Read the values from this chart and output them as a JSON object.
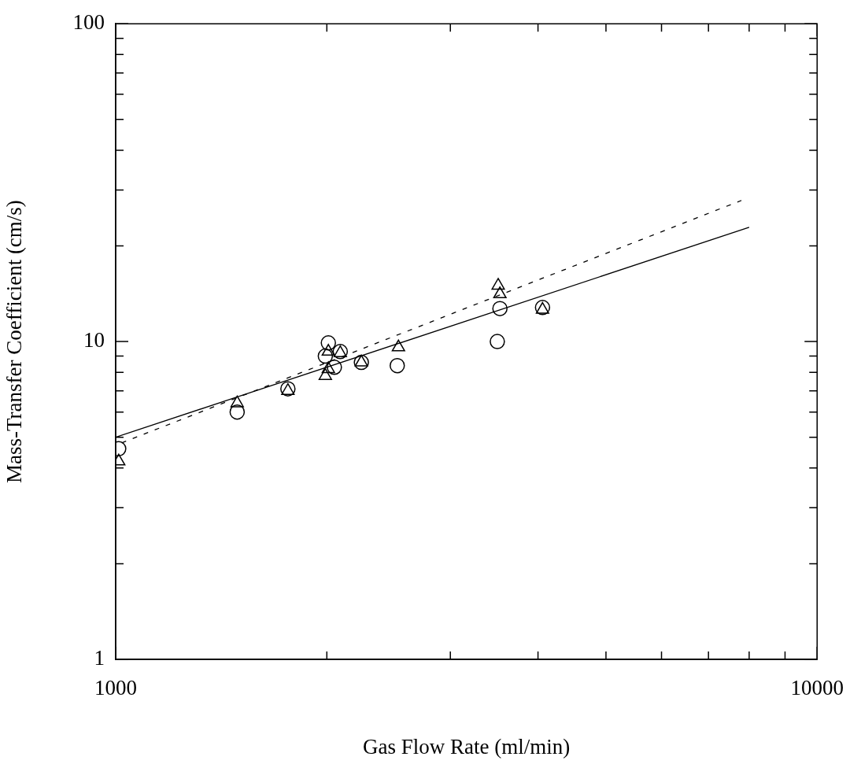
{
  "chart_data": {
    "type": "scatter",
    "xlabel": "Gas Flow Rate (ml/min)",
    "ylabel": "Mass-Transfer Coefficient (cm/s)",
    "log": "xy",
    "grid": false,
    "legend": false,
    "xlim": [
      1000,
      10000
    ],
    "ylim": [
      1,
      100
    ],
    "xticks": [
      1000,
      {
        "value": 2000,
        "label": null
      },
      {
        "value": 3000,
        "label": null
      },
      {
        "value": 4000,
        "label": null
      },
      {
        "value": 5000,
        "label": null
      },
      {
        "value": 6000,
        "label": null
      },
      {
        "value": 7000,
        "label": null
      },
      {
        "value": 8000,
        "label": null
      },
      {
        "value": 9000,
        "label": null
      },
      10000
    ],
    "yticks": [
      1,
      {
        "value": 2,
        "label": null
      },
      {
        "value": 3,
        "label": null
      },
      {
        "value": 4,
        "label": null
      },
      {
        "value": 5,
        "label": null
      },
      {
        "value": 6,
        "label": null
      },
      {
        "value": 7,
        "label": null
      },
      {
        "value": 8,
        "label": null
      },
      {
        "value": 9,
        "label": null
      },
      10,
      {
        "value": 20,
        "label": null
      },
      {
        "value": 30,
        "label": null
      },
      {
        "value": 40,
        "label": null
      },
      {
        "value": 50,
        "label": null
      },
      {
        "value": 60,
        "label": null
      },
      {
        "value": 70,
        "label": null
      },
      {
        "value": 80,
        "label": null
      },
      {
        "value": 90,
        "label": null
      },
      100
    ],
    "series": [
      {
        "marker": "circle",
        "color": "#000000",
        "x": [
          1010,
          1490,
          1760,
          2010,
          1990,
          2050,
          2090,
          2240,
          2520,
          3530,
          3500,
          4060
        ],
        "values": [
          4.6,
          6.0,
          7.1,
          9.9,
          9.0,
          8.3,
          9.3,
          8.6,
          8.4,
          12.7,
          10.0,
          12.8
        ]
      },
      {
        "marker": "triangle",
        "color": "#000000",
        "x": [
          1010,
          1490,
          1760,
          2010,
          1990,
          2010,
          2090,
          2240,
          2530,
          3510,
          3530,
          4060
        ],
        "values": [
          4.2,
          6.4,
          7.0,
          9.3,
          7.8,
          8.2,
          9.2,
          8.6,
          9.6,
          15.0,
          14.1,
          12.6
        ]
      },
      {
        "type": "line",
        "marker": "none",
        "line_style": "solid",
        "color": "#000000",
        "x": [
          1000,
          8000
        ],
        "values": [
          5.0,
          22.9
        ]
      },
      {
        "type": "line",
        "marker": "none",
        "line_style": "dashed",
        "color": "#000000",
        "x": [
          1020,
          7800
        ],
        "values": [
          4.8,
          27.8
        ]
      }
    ]
  }
}
